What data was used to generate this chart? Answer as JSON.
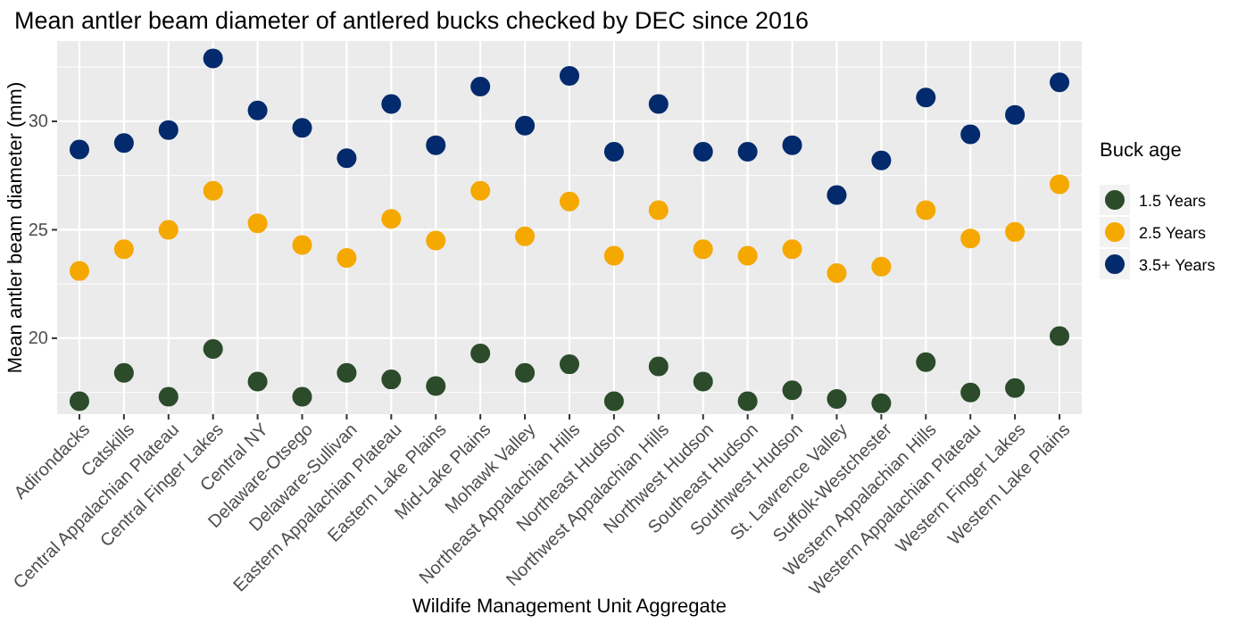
{
  "chart_data": {
    "type": "scatter",
    "title": "Mean antler beam diameter of antlered bucks checked by DEC since 2016",
    "xlabel": "Wildife Management Unit Aggregate",
    "ylabel": "Mean antler beam diameter (mm)",
    "legend_title": "Buck age",
    "legend": "right",
    "grid": true,
    "marker": "circle",
    "categories": [
      "Adirondacks",
      "Catskills",
      "Central Appalachian Plateau",
      "Central Finger Lakes",
      "Central NY",
      "Delaware-Otsego",
      "Delaware-Sullivan",
      "Eastern Appalachian Plateau",
      "Eastern Lake Plains",
      "Mid-Lake Plains",
      "Mohawk Valley",
      "Northeast Appalachian Hills",
      "Northeast Hudson",
      "Northwest Appalachian Hills",
      "Northwest Hudson",
      "Southeast Hudson",
      "Southwest Hudson",
      "St. Lawrence Valley",
      "Suffolk-Westchester",
      "Western Appalachian Hills",
      "Western Appalachian Plateau",
      "Western Finger Lakes",
      "Western Lake Plains"
    ],
    "ylim": [
      16.5,
      33.7
    ],
    "yticks": [
      20,
      25,
      30
    ],
    "series": [
      {
        "name": "1.5 Years",
        "color": "#2b4b2b",
        "values": [
          17.1,
          18.4,
          17.3,
          19.5,
          18.0,
          17.3,
          18.4,
          18.1,
          17.8,
          19.3,
          18.4,
          18.8,
          17.1,
          18.7,
          18.0,
          17.1,
          17.6,
          17.2,
          17.0,
          18.9,
          17.5,
          17.7,
          20.1
        ]
      },
      {
        "name": "2.5 Years",
        "color": "#f5a800",
        "values": [
          23.1,
          24.1,
          25.0,
          26.8,
          25.3,
          24.3,
          23.7,
          25.5,
          24.5,
          26.8,
          24.7,
          26.3,
          23.8,
          25.9,
          24.1,
          23.8,
          24.1,
          23.0,
          23.3,
          25.9,
          24.6,
          24.9,
          27.1
        ]
      },
      {
        "name": "3.5+ Years",
        "color": "#022a6c",
        "values": [
          28.7,
          29.0,
          29.6,
          32.9,
          30.5,
          29.7,
          28.3,
          30.8,
          28.9,
          31.6,
          29.8,
          32.1,
          28.6,
          30.8,
          28.6,
          28.6,
          28.9,
          26.6,
          28.2,
          31.1,
          29.4,
          30.3,
          31.8
        ]
      }
    ]
  }
}
